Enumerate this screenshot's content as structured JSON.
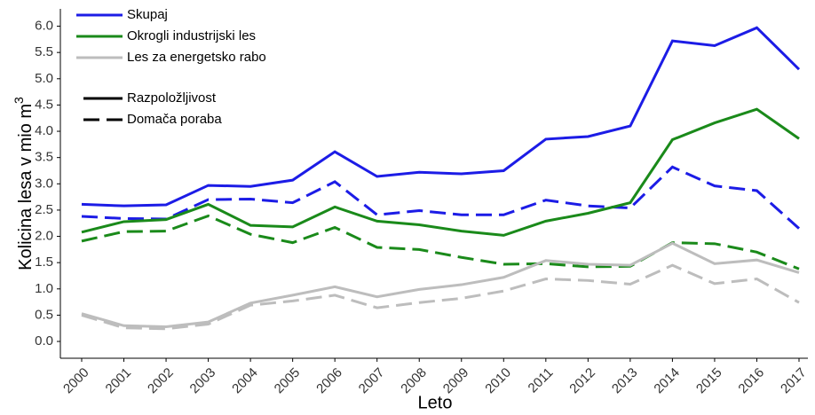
{
  "chart_data": {
    "type": "line",
    "ylabel": "Kolicina lesa v mio m",
    "ylabel_superscript": "3",
    "xlabel": "Leto",
    "categories": [
      "2000",
      "2001",
      "2002",
      "2003",
      "2004",
      "2005",
      "2006",
      "2007",
      "2008",
      "2009",
      "2010",
      "2011",
      "2012",
      "2013",
      "2014",
      "2015",
      "2016",
      "2017"
    ],
    "line_styles": [
      {
        "name": "Razpoložljivost",
        "dash": "solid"
      },
      {
        "name": "Domača poraba",
        "dash": "dashed"
      }
    ],
    "series": [
      {
        "name": "Skupaj",
        "color": "#1c1ce6",
        "lines": [
          {
            "style": "solid",
            "values": [
              2.61,
              2.58,
              2.6,
              2.97,
              2.95,
              3.07,
              3.61,
              3.14,
              3.22,
              3.19,
              3.25,
              3.85,
              3.9,
              4.1,
              5.72,
              5.63,
              5.97,
              5.18
            ]
          },
          {
            "style": "dashed",
            "values": [
              2.38,
              2.34,
              2.33,
              2.7,
              2.71,
              2.64,
              3.04,
              2.41,
              2.49,
              2.41,
              2.41,
              2.69,
              2.58,
              2.54,
              3.32,
              2.96,
              2.87,
              2.15
            ]
          }
        ]
      },
      {
        "name": "Okrogli industrijski les",
        "color": "#1a8a1a",
        "lines": [
          {
            "style": "solid",
            "values": [
              2.08,
              2.28,
              2.32,
              2.61,
              2.21,
              2.18,
              2.56,
              2.29,
              2.22,
              2.1,
              2.02,
              2.29,
              2.44,
              2.64,
              3.84,
              4.16,
              4.42,
              3.86
            ]
          },
          {
            "style": "dashed",
            "values": [
              1.91,
              2.09,
              2.1,
              2.39,
              2.04,
              1.88,
              2.17,
              1.79,
              1.75,
              1.6,
              1.47,
              1.48,
              1.42,
              1.43,
              1.88,
              1.86,
              1.7,
              1.38
            ]
          }
        ]
      },
      {
        "name": "Les za energetsko rabo",
        "color": "#bdbdbd",
        "lines": [
          {
            "style": "solid",
            "values": [
              0.53,
              0.3,
              0.28,
              0.37,
              0.73,
              0.88,
              1.04,
              0.85,
              0.99,
              1.08,
              1.22,
              1.54,
              1.47,
              1.45,
              1.87,
              1.48,
              1.55,
              1.31
            ]
          },
          {
            "style": "dashed",
            "values": [
              0.5,
              0.26,
              0.24,
              0.33,
              0.69,
              0.77,
              0.88,
              0.64,
              0.74,
              0.82,
              0.96,
              1.19,
              1.16,
              1.09,
              1.45,
              1.1,
              1.19,
              0.74
            ]
          }
        ]
      }
    ],
    "ylim": [
      -0.32,
      6.33
    ],
    "yticks": [
      {
        "value": 0,
        "label": "0.0"
      },
      0.5,
      {
        "value": 1,
        "label": "1.0"
      },
      1.5,
      {
        "value": 2,
        "label": "2.0"
      },
      2.5,
      {
        "value": 3,
        "label": "3.0"
      },
      3.5,
      {
        "value": 4,
        "label": "4.0"
      },
      4.5,
      {
        "value": 5,
        "label": "5.0"
      },
      5.5,
      {
        "value": 6,
        "label": "6.0"
      }
    ],
    "grid": false
  }
}
